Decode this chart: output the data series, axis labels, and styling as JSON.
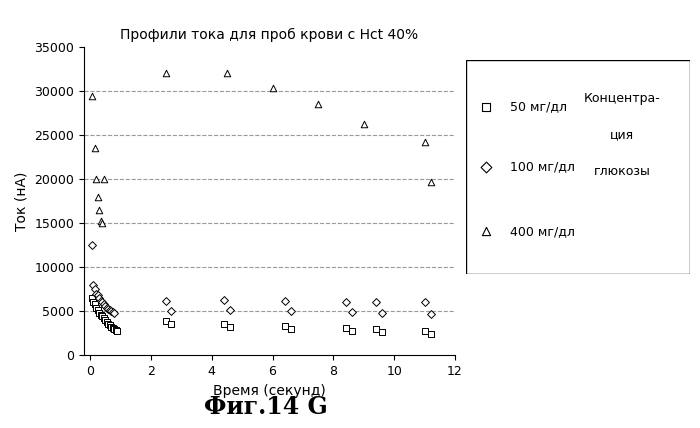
{
  "title": "Профили тока для проб крови с Hct 40%",
  "xlabel": "Время (секунд)",
  "ylabel": "Ток (нА)",
  "figcaption": "Фиг.14 G",
  "xlim": [
    -0.2,
    12
  ],
  "ylim": [
    0,
    35000
  ],
  "yticks": [
    0,
    5000,
    10000,
    15000,
    20000,
    25000,
    30000,
    35000
  ],
  "xticks": [
    0,
    2,
    4,
    6,
    8,
    10,
    12
  ],
  "grid_y": [
    5000,
    10000,
    15000,
    20000,
    25000,
    30000
  ],
  "series_50": {
    "label": "50 мг/дл",
    "x": [
      0.05,
      0.1,
      0.15,
      0.2,
      0.25,
      0.3,
      0.35,
      0.4,
      0.45,
      0.5,
      0.55,
      0.6,
      0.65,
      0.7,
      0.75,
      0.8,
      0.85,
      0.9,
      2.5,
      2.65,
      4.4,
      4.6,
      6.4,
      6.6,
      8.4,
      8.6,
      9.4,
      9.6,
      11.0,
      11.2
    ],
    "y": [
      6500,
      6100,
      5800,
      5400,
      5100,
      4800,
      4600,
      4400,
      4200,
      4000,
      3800,
      3600,
      3400,
      3200,
      3100,
      3000,
      2900,
      2800,
      3900,
      3500,
      3500,
      3200,
      3300,
      3000,
      3100,
      2700,
      3000,
      2600,
      2800,
      2400
    ]
  },
  "series_100": {
    "label": "100 мг/дл",
    "x": [
      0.05,
      0.1,
      0.15,
      0.2,
      0.25,
      0.3,
      0.35,
      0.4,
      0.45,
      0.5,
      0.55,
      0.6,
      0.65,
      0.7,
      0.75,
      0.8,
      2.5,
      2.65,
      4.4,
      4.6,
      6.4,
      6.6,
      8.4,
      8.6,
      9.4,
      9.6,
      11.0,
      11.2
    ],
    "y": [
      12500,
      8000,
      7500,
      7000,
      6800,
      6500,
      6200,
      6000,
      5800,
      5600,
      5400,
      5200,
      5100,
      5000,
      4900,
      4800,
      6200,
      5000,
      6300,
      5100,
      6200,
      5000,
      6100,
      4900,
      6000,
      4800,
      6100,
      4700
    ]
  },
  "series_400": {
    "label": "400 мг/дл",
    "x": [
      0.05,
      0.15,
      0.2,
      0.25,
      0.3,
      0.35,
      0.4,
      0.45,
      2.5,
      4.5,
      6.0,
      7.5,
      9.0,
      11.0,
      11.2
    ],
    "y": [
      29500,
      23500,
      20000,
      18000,
      16500,
      15200,
      15000,
      20000,
      32000,
      32000,
      30300,
      28500,
      26300,
      24200,
      19700
    ]
  },
  "background_color": "#ffffff"
}
